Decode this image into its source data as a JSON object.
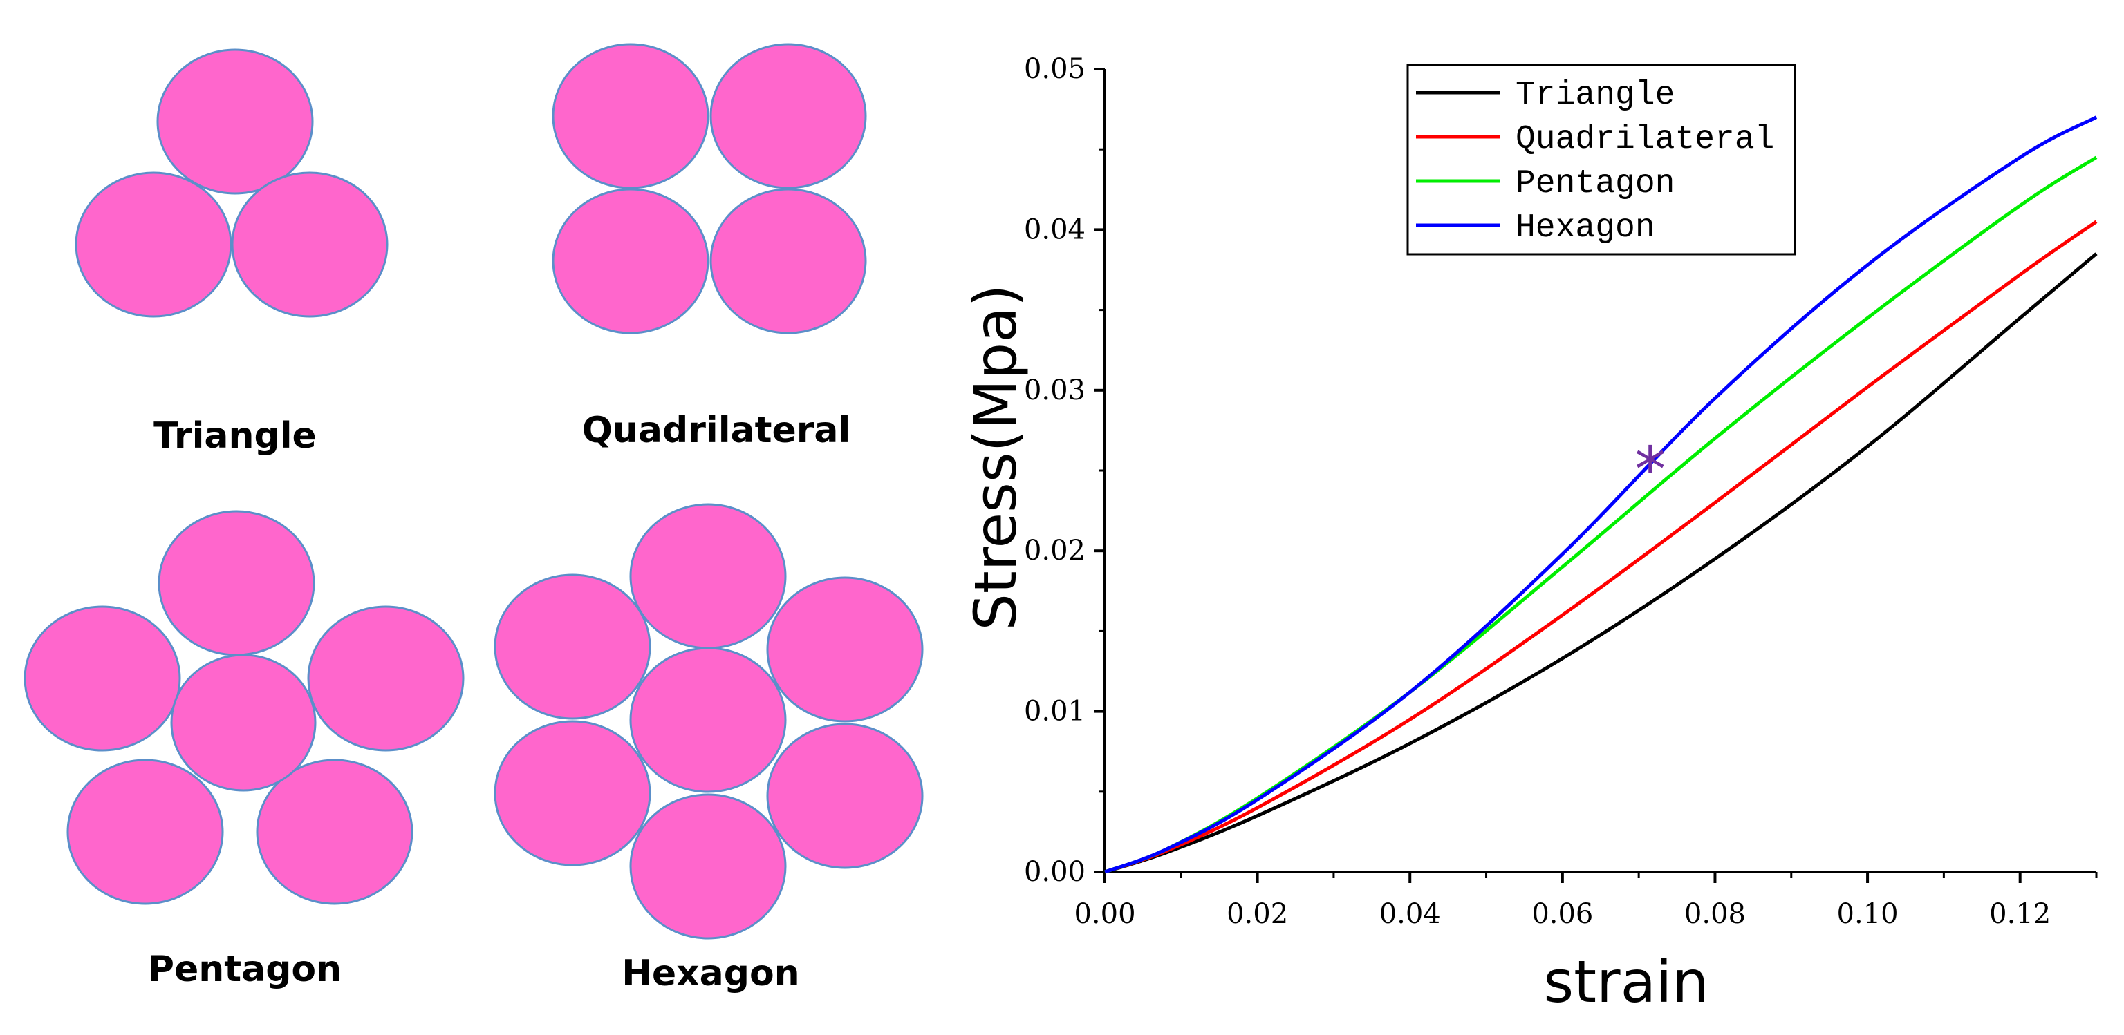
{
  "colors": {
    "circle_fill": "#ff66cc",
    "circle_stroke": "#5b8fc9",
    "background": "#ffffff",
    "axis": "#000000"
  },
  "diagrams": [
    {
      "id": "triangle",
      "label": "Triangle"
    },
    {
      "id": "quadrilateral",
      "label": "Quadrilateral"
    },
    {
      "id": "pentagon",
      "label": "Pentagon"
    },
    {
      "id": "hexagon",
      "label": "Hexagon"
    }
  ],
  "chart_data": {
    "type": "line",
    "title": "",
    "xlabel": "strain",
    "ylabel": "Stress(Mpa)",
    "xlim": [
      0,
      0.13
    ],
    "ylim": [
      0,
      0.05
    ],
    "xticks": [
      0.0,
      0.02,
      0.04,
      0.06,
      0.08,
      0.1,
      0.12
    ],
    "xtick_labels": [
      "0.00",
      "0.02",
      "0.04",
      "0.06",
      "0.08",
      "0.10",
      "0.12"
    ],
    "yticks": [
      0.0,
      0.01,
      0.02,
      0.03,
      0.04,
      0.05
    ],
    "ytick_labels": [
      "0.00",
      "0.01",
      "0.02",
      "0.03",
      "0.04",
      "0.05"
    ],
    "legend_position": "top-center",
    "series": [
      {
        "name": "Triangle",
        "color": "#000000",
        "x": [
          0,
          0.008,
          0.02,
          0.04,
          0.06,
          0.08,
          0.1,
          0.12,
          0.13
        ],
        "y": [
          0,
          0.0012,
          0.0035,
          0.008,
          0.0133,
          0.0195,
          0.0265,
          0.0345,
          0.0385
        ]
      },
      {
        "name": "Quadrilateral",
        "color": "#ff0000",
        "x": [
          0,
          0.008,
          0.02,
          0.04,
          0.06,
          0.08,
          0.1,
          0.12,
          0.13
        ],
        "y": [
          0,
          0.0013,
          0.004,
          0.0095,
          0.016,
          0.023,
          0.0302,
          0.0372,
          0.0405
        ]
      },
      {
        "name": "Pentagon",
        "color": "#00ee00",
        "x": [
          0,
          0.008,
          0.02,
          0.04,
          0.06,
          0.08,
          0.1,
          0.12,
          0.13
        ],
        "y": [
          0,
          0.0014,
          0.0046,
          0.0112,
          0.019,
          0.027,
          0.0345,
          0.0415,
          0.0445
        ]
      },
      {
        "name": "Hexagon",
        "color": "#0000ff",
        "x": [
          0,
          0.008,
          0.02,
          0.04,
          0.06,
          0.08,
          0.1,
          0.12,
          0.13
        ],
        "y": [
          0,
          0.0014,
          0.0045,
          0.0112,
          0.0198,
          0.0295,
          0.0378,
          0.0445,
          0.047
        ]
      }
    ],
    "markers": [
      {
        "name": "star-marker",
        "x": 0.0715,
        "y": 0.025,
        "symbol": "*",
        "color": "#7030a0"
      }
    ]
  }
}
